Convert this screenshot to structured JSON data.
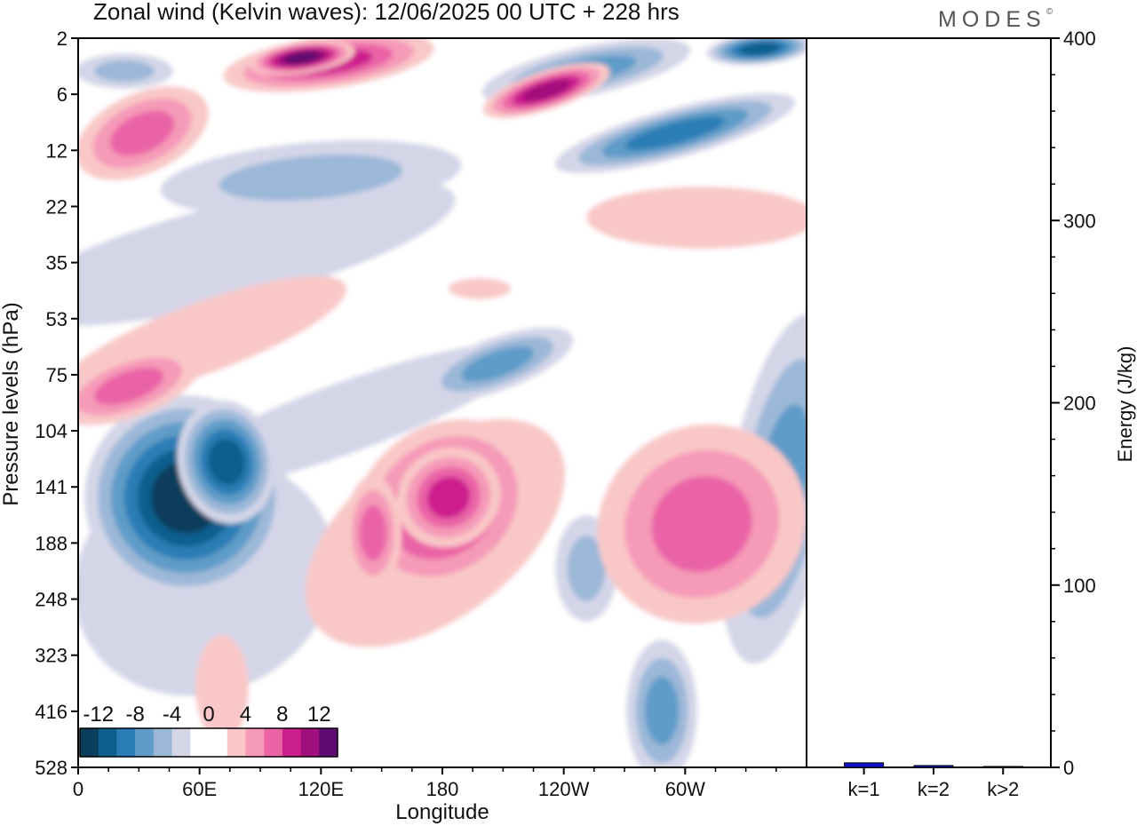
{
  "header": {
    "title": "Zonal wind (Kelvin waves):  12/06/2025  00 UTC  + 228 hrs",
    "brand": "MODES",
    "brand_mark": "©"
  },
  "chart_data": [
    {
      "type": "heatmap",
      "title": "Zonal wind (Kelvin waves):  12/06/2025  00 UTC  + 228 hrs",
      "xlabel": "Longitude",
      "ylabel": "Pressure levels (hPa)",
      "x_ticks": [
        "0",
        "60E",
        "120E",
        "180",
        "120W",
        "60W"
      ],
      "x_tick_degrees": [
        0,
        60,
        120,
        180,
        240,
        300
      ],
      "xlim": [
        0,
        360
      ],
      "y_ticks": [
        "2",
        "6",
        "12",
        "22",
        "35",
        "53",
        "75",
        "104",
        "141",
        "188",
        "248",
        "323",
        "416",
        "528"
      ],
      "y_scale": "level index (top = 2 hPa, bottom = 528 hPa)",
      "colorbar": {
        "labels": [
          "-12",
          "-8",
          "-4",
          "0",
          "4",
          "8",
          "12"
        ],
        "levels": [
          -14,
          -12,
          -10,
          -8,
          -6,
          -4,
          -2,
          0,
          2,
          4,
          6,
          8,
          10,
          12,
          14
        ],
        "colors": [
          "#0b3d5c",
          "#0f5f8e",
          "#2a7db5",
          "#5f9cc8",
          "#9cb8d8",
          "#d4d6e8",
          "#ffffff",
          "#ffffff",
          "#f9c7c7",
          "#f59ab8",
          "#ea64a6",
          "#cc1f8e",
          "#a10f7c",
          "#5f0a6e"
        ]
      },
      "features": [
        {
          "sign": "negative",
          "peak": -13,
          "lon_range": [
            20,
            95
          ],
          "levels": "75-416 hPa"
        },
        {
          "sign": "positive",
          "peak": 9,
          "lon_range": [
            130,
            225
          ],
          "levels": "75-323 hPa"
        },
        {
          "sign": "positive",
          "peak": 6,
          "lon_range": [
            280,
            360
          ],
          "levels": "104-248 hPa"
        },
        {
          "sign": "positive",
          "peak": 6,
          "lon_range": [
            0,
            60
          ],
          "levels": "53-104 hPa"
        },
        {
          "sign": "positive",
          "peak": 10,
          "lon_range": [
            80,
            175
          ],
          "levels": "2-6 hPa"
        },
        {
          "sign": "positive",
          "peak": 9,
          "lon_range": [
            200,
            265
          ],
          "levels": "2-12 hPa"
        },
        {
          "sign": "negative",
          "peak": -9,
          "lon_range": [
            220,
            330
          ],
          "levels": "2-12 hPa"
        },
        {
          "sign": "negative",
          "peak": -7,
          "lon_range": [
            100,
            195
          ],
          "levels": "12-22 hPa"
        },
        {
          "sign": "positive",
          "peak": 7,
          "lon_range": [
            10,
            55
          ],
          "levels": "6-12 hPa"
        },
        {
          "sign": "positive",
          "peak": 3,
          "lon_range": [
            250,
            360
          ],
          "levels": "12-35 hPa"
        }
      ]
    },
    {
      "type": "bar",
      "categories": [
        "k=1",
        "k=2",
        "k>2"
      ],
      "values": [
        2.5,
        1.0,
        0.5
      ],
      "ylabel": "Energy (J/kg)",
      "ylim": [
        0,
        400
      ],
      "y_ticks": [
        "0",
        "100",
        "200",
        "300",
        "400"
      ],
      "bar_color": "#1010c8"
    }
  ]
}
